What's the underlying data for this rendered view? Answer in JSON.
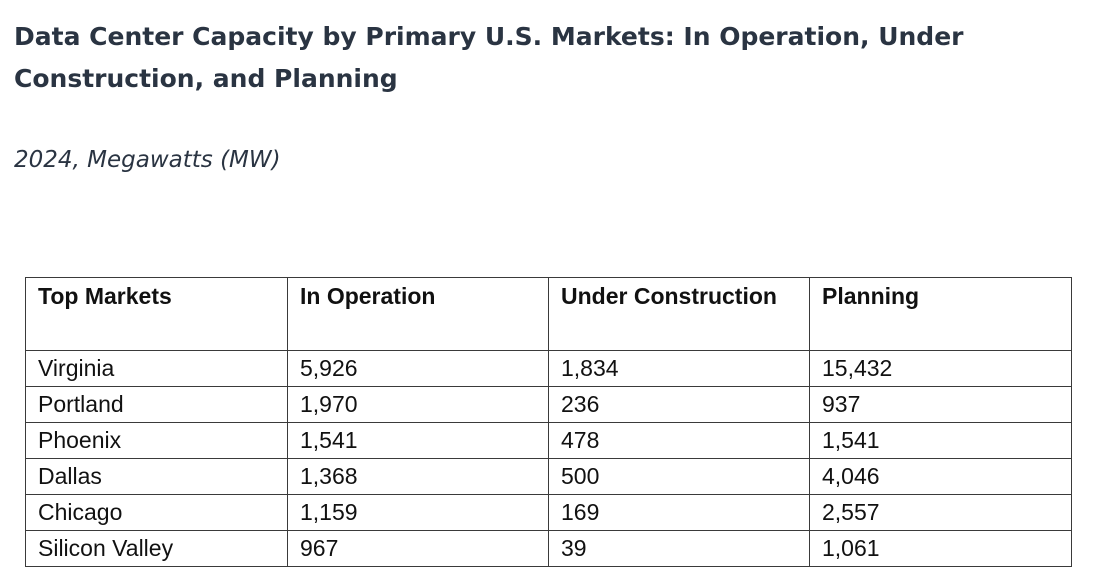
{
  "title": "Data Center Capacity by Primary U.S. Markets: In Operation, Under Construction, and Planning",
  "subtitle": "2024, Megawatts (MW)",
  "table": {
    "headers": [
      "Top Markets",
      "In Operation",
      "Under Construction",
      "Planning"
    ],
    "rows": [
      [
        "Virginia",
        "5,926",
        "1,834",
        "15,432"
      ],
      [
        "Portland",
        "1,970",
        "236",
        "937"
      ],
      [
        "Phoenix",
        "1,541",
        "478",
        "1,541"
      ],
      [
        "Dallas",
        "1,368",
        "500",
        "4,046"
      ],
      [
        "Chicago",
        "1,159",
        "169",
        "2,557"
      ],
      [
        "Silicon Valley",
        "967",
        "39",
        "1,061"
      ]
    ]
  }
}
